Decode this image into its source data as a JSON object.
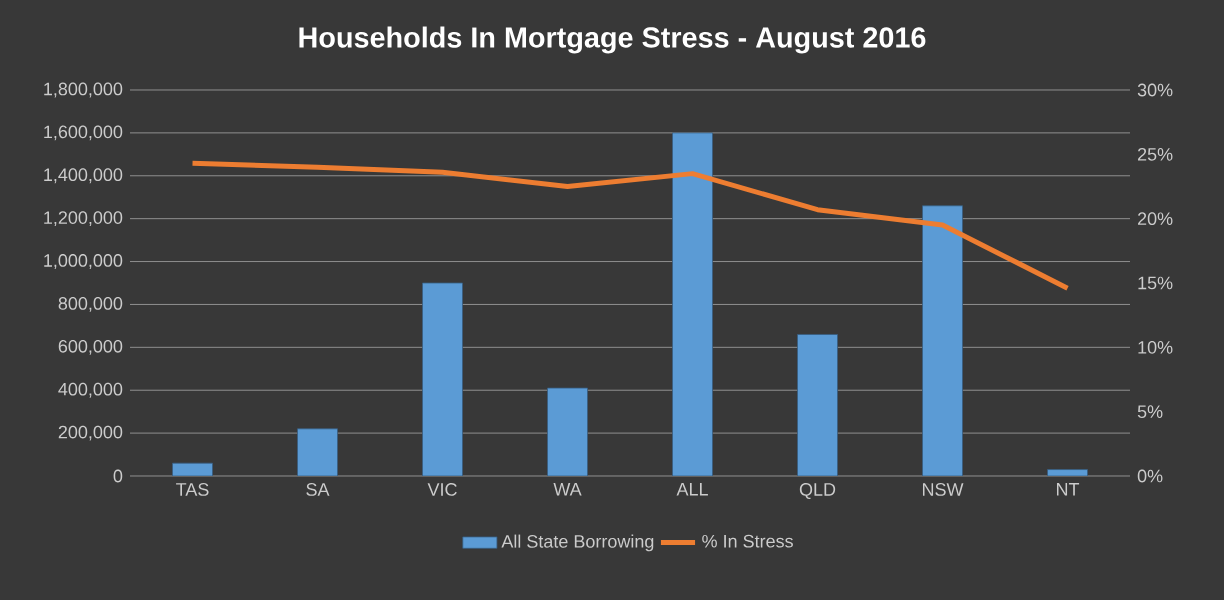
{
  "chart_data": {
    "type": "bar",
    "title": "Households In Mortgage Stress - August 2016",
    "categories": [
      "TAS",
      "SA",
      "VIC",
      "WA",
      "ALL",
      "QLD",
      "NSW",
      "NT"
    ],
    "series": [
      {
        "name": "All State Borrowing",
        "color": "#5b9bd5",
        "values": [
          60000,
          220000,
          900000,
          410000,
          1600000,
          660000,
          1260000,
          30000
        ]
      },
      {
        "name": "% In Stress",
        "type": "line",
        "axis": "y2",
        "color": "#ed7d31",
        "values": [
          24.3,
          24.0,
          23.6,
          22.5,
          23.5,
          20.7,
          19.5,
          14.6
        ]
      }
    ],
    "ylim": [
      0,
      1800000
    ],
    "yticks": [
      {
        "value": 0,
        "label": "0"
      },
      {
        "value": 200000,
        "label": "200,000"
      },
      {
        "value": 400000,
        "label": "400,000"
      },
      {
        "value": 600000,
        "label": "600,000"
      },
      {
        "value": 800000,
        "label": "800,000"
      },
      {
        "value": 1000000,
        "label": "1,000,000"
      },
      {
        "value": 1200000,
        "label": "1,200,000"
      },
      {
        "value": 1400000,
        "label": "1,400,000"
      },
      {
        "value": 1600000,
        "label": "1,600,000"
      },
      {
        "value": 1800000,
        "label": "1,800,000"
      }
    ],
    "y2lim": [
      0,
      30
    ],
    "y2ticks": [
      {
        "value": 0,
        "label": "0%"
      },
      {
        "value": 5,
        "label": "5%"
      },
      {
        "value": 10,
        "label": "10%"
      },
      {
        "value": 15,
        "label": "15%"
      },
      {
        "value": 20,
        "label": "20%"
      },
      {
        "value": 25,
        "label": "25%"
      },
      {
        "value": 30,
        "label": "30%"
      }
    ],
    "grid": "y",
    "legend": "bottom",
    "marker": "none",
    "line_style": "solid"
  }
}
